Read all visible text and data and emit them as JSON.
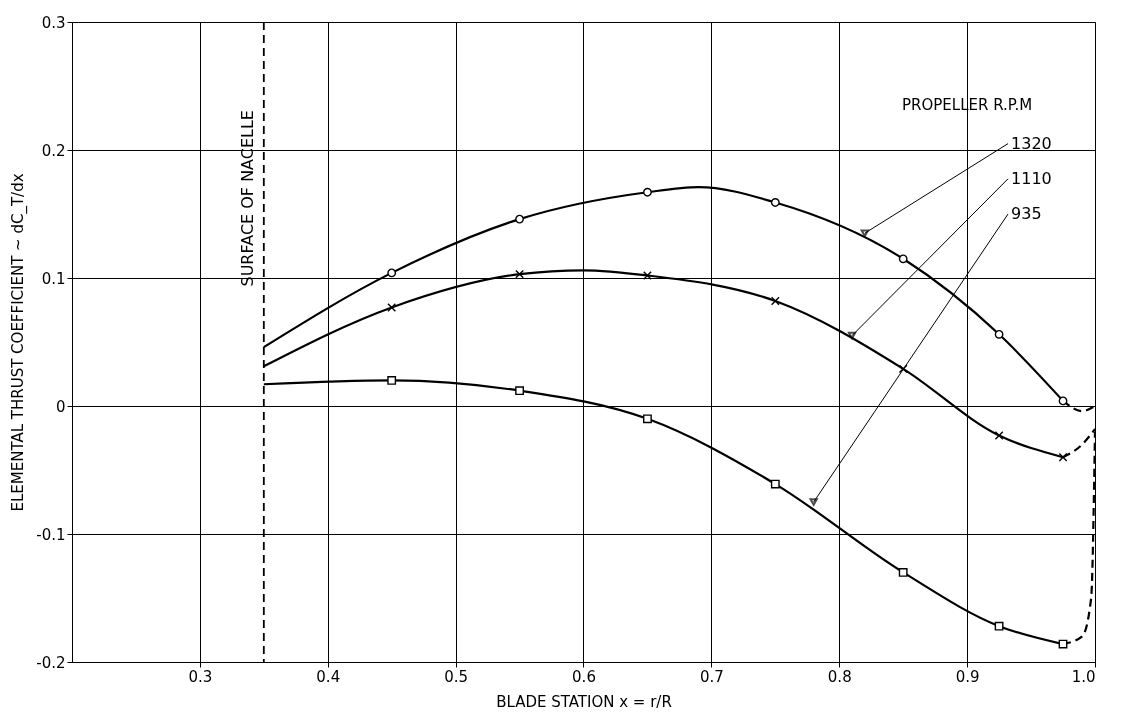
{
  "chart_data": {
    "type": "line",
    "xlabel": "BLADE STATION x = r/R",
    "ylabel": "ELEMENTAL THRUST COEFFICIENT ~ dC_T/dx",
    "legend_title": "PROPELLER R.P.M",
    "series": [
      {
        "color": "#000000",
        "marker": "none",
        "line_style": "solid",
        "x": [
          0.35,
          0.45,
          0.55,
          0.65,
          0.69,
          0.75,
          0.85,
          0.925,
          0.975
        ],
        "values": [
          0.046,
          0.104,
          0.146,
          0.167,
          0.171,
          0.159,
          0.115,
          0.056,
          0.004
        ]
      },
      {
        "color": "#000000",
        "marker": "none",
        "line_style": "solid",
        "x": [
          0.35,
          0.45,
          0.55,
          0.6,
          0.65,
          0.75,
          0.85,
          0.925,
          0.975
        ],
        "values": [
          0.031,
          0.077,
          0.103,
          0.106,
          0.102,
          0.082,
          0.029,
          -0.023,
          -0.04
        ]
      },
      {
        "color": "#000000",
        "marker": "none",
        "line_style": "solid",
        "x": [
          0.35,
          0.45,
          0.55,
          0.65,
          0.75,
          0.85,
          0.925,
          0.975
        ],
        "values": [
          0.017,
          0.02,
          0.012,
          -0.01,
          -0.061,
          -0.13,
          -0.172,
          -0.186
        ]
      },
      {
        "type": "line",
        "color": "#000000",
        "marker": "none",
        "line_style": "dashed",
        "x": [
          0.975,
          0.99,
          1.0
        ],
        "values": [
          0.004,
          -0.004,
          0.0
        ]
      },
      {
        "type": "line",
        "color": "#000000",
        "marker": "none",
        "line_style": "dashed",
        "x": [
          0.975,
          0.99,
          1.0
        ],
        "values": [
          -0.04,
          -0.03,
          -0.018
        ]
      },
      {
        "type": "line",
        "color": "#000000",
        "marker": "none",
        "line_style": "dashed",
        "x": [
          0.975,
          0.99,
          0.997,
          1.0
        ],
        "values": [
          -0.186,
          -0.18,
          -0.15,
          -0.02
        ]
      },
      {
        "type": "scatter",
        "color": "#000000",
        "marker": "circle",
        "x": [
          0.45,
          0.55,
          0.65,
          0.75,
          0.85,
          0.925,
          0.975
        ],
        "values": [
          0.104,
          0.146,
          0.167,
          0.159,
          0.115,
          0.056,
          0.004
        ]
      },
      {
        "type": "scatter",
        "color": "#000000",
        "marker": "cross",
        "x": [
          0.45,
          0.55,
          0.65,
          0.75,
          0.85,
          0.925,
          0.975
        ],
        "values": [
          0.077,
          0.103,
          0.102,
          0.082,
          0.029,
          -0.023,
          -0.04
        ]
      },
      {
        "type": "scatter",
        "color": "#000000",
        "marker": "square",
        "x": [
          0.45,
          0.55,
          0.65,
          0.75,
          0.85,
          0.925,
          0.975
        ],
        "values": [
          0.02,
          0.012,
          -0.01,
          -0.061,
          -0.13,
          -0.172,
          -0.186
        ]
      }
    ],
    "annotations": [
      {
        "text": "1320",
        "x": 0.82,
        "y": 0.135
      },
      {
        "text": "1110",
        "x": 0.81,
        "y": 0.055
      },
      {
        "text": "935",
        "x": 0.78,
        "y": -0.075
      }
    ],
    "ref_lines": [
      {
        "axis": "x",
        "value": 0.35,
        "label": "SURFACE OF NACELLE",
        "line_style": "dashed",
        "color": "#000000"
      }
    ],
    "xlim": [
      0.2,
      1.0
    ],
    "xticks": [
      0.3,
      0.4,
      0.5,
      0.6,
      0.7,
      0.8,
      0.9,
      {
        "value": 1.0,
        "label": "1.0"
      }
    ],
    "ylim": [
      -0.2,
      0.3
    ],
    "yticks": [
      -0.2,
      -0.1,
      0,
      0.1,
      0.2,
      0.3
    ],
    "grid": true
  }
}
